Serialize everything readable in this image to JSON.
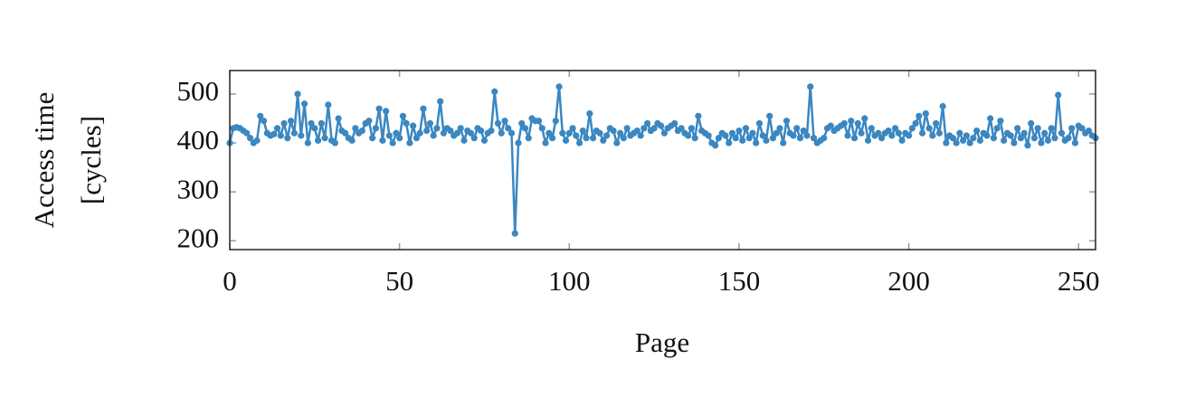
{
  "chart_data": {
    "type": "line",
    "xlabel": "Page",
    "ylabel": [
      "Access time",
      "[cycles]"
    ],
    "color": "#3b87c1",
    "xlim": [
      0,
      255
    ],
    "ylim": [
      182,
      548
    ],
    "xticks": [
      0,
      50,
      100,
      150,
      200,
      250
    ],
    "yticks": [
      200,
      300,
      400,
      500
    ],
    "x": [
      0,
      1,
      2,
      3,
      4,
      5,
      6,
      7,
      8,
      9,
      10,
      11,
      12,
      13,
      14,
      15,
      16,
      17,
      18,
      19,
      20,
      21,
      22,
      23,
      24,
      25,
      26,
      27,
      28,
      29,
      30,
      31,
      32,
      33,
      34,
      35,
      36,
      37,
      38,
      39,
      40,
      41,
      42,
      43,
      44,
      45,
      46,
      47,
      48,
      49,
      50,
      51,
      52,
      53,
      54,
      55,
      56,
      57,
      58,
      59,
      60,
      61,
      62,
      63,
      64,
      65,
      66,
      67,
      68,
      69,
      70,
      71,
      72,
      73,
      74,
      75,
      76,
      77,
      78,
      79,
      80,
      81,
      82,
      83,
      84,
      85,
      86,
      87,
      88,
      89,
      90,
      91,
      92,
      93,
      94,
      95,
      96,
      97,
      98,
      99,
      100,
      101,
      102,
      103,
      104,
      105,
      106,
      107,
      108,
      109,
      110,
      111,
      112,
      113,
      114,
      115,
      116,
      117,
      118,
      119,
      120,
      121,
      122,
      123,
      124,
      125,
      126,
      127,
      128,
      129,
      130,
      131,
      132,
      133,
      134,
      135,
      136,
      137,
      138,
      139,
      140,
      141,
      142,
      143,
      144,
      145,
      146,
      147,
      148,
      149,
      150,
      151,
      152,
      153,
      154,
      155,
      156,
      157,
      158,
      159,
      160,
      161,
      162,
      163,
      164,
      165,
      166,
      167,
      168,
      169,
      170,
      171,
      172,
      173,
      174,
      175,
      176,
      177,
      178,
      179,
      180,
      181,
      182,
      183,
      184,
      185,
      186,
      187,
      188,
      189,
      190,
      191,
      192,
      193,
      194,
      195,
      196,
      197,
      198,
      199,
      200,
      201,
      202,
      203,
      204,
      205,
      206,
      207,
      208,
      209,
      210,
      211,
      212,
      213,
      214,
      215,
      216,
      217,
      218,
      219,
      220,
      221,
      222,
      223,
      224,
      225,
      226,
      227,
      228,
      229,
      230,
      231,
      232,
      233,
      234,
      235,
      236,
      237,
      238,
      239,
      240,
      241,
      242,
      243,
      244,
      245,
      246,
      247,
      248,
      249,
      250,
      251,
      252,
      253,
      254,
      255
    ],
    "values": [
      400,
      430,
      432,
      430,
      425,
      420,
      410,
      400,
      405,
      455,
      445,
      420,
      415,
      418,
      430,
      415,
      440,
      410,
      445,
      420,
      500,
      415,
      480,
      400,
      440,
      430,
      405,
      440,
      410,
      478,
      405,
      400,
      450,
      425,
      420,
      410,
      405,
      430,
      420,
      425,
      440,
      445,
      410,
      430,
      470,
      405,
      465,
      415,
      400,
      420,
      410,
      455,
      440,
      400,
      435,
      410,
      420,
      470,
      425,
      440,
      415,
      430,
      485,
      420,
      430,
      425,
      415,
      420,
      430,
      405,
      425,
      420,
      410,
      430,
      425,
      405,
      420,
      425,
      505,
      440,
      420,
      445,
      430,
      420,
      215,
      400,
      440,
      430,
      410,
      450,
      445,
      445,
      430,
      400,
      420,
      410,
      445,
      515,
      420,
      405,
      420,
      430,
      415,
      400,
      425,
      410,
      460,
      410,
      425,
      420,
      405,
      415,
      430,
      425,
      400,
      420,
      410,
      430,
      415,
      420,
      425,
      415,
      430,
      440,
      425,
      430,
      440,
      435,
      420,
      430,
      435,
      440,
      425,
      430,
      420,
      415,
      430,
      410,
      455,
      425,
      420,
      415,
      400,
      395,
      410,
      420,
      415,
      400,
      420,
      410,
      425,
      405,
      430,
      410,
      420,
      400,
      440,
      415,
      405,
      455,
      410,
      420,
      430,
      400,
      445,
      420,
      415,
      430,
      410,
      425,
      415,
      515,
      410,
      400,
      405,
      410,
      430,
      435,
      425,
      430,
      435,
      440,
      415,
      445,
      410,
      440,
      420,
      450,
      405,
      430,
      415,
      420,
      410,
      420,
      425,
      415,
      430,
      420,
      405,
      420,
      415,
      430,
      440,
      455,
      420,
      460,
      430,
      415,
      440,
      420,
      475,
      400,
      415,
      410,
      400,
      420,
      405,
      415,
      400,
      410,
      425,
      405,
      420,
      415,
      450,
      410,
      430,
      445,
      405,
      420,
      415,
      400,
      430,
      410,
      420,
      395,
      440,
      410,
      430,
      400,
      420,
      405,
      430,
      410,
      498,
      420,
      405,
      410,
      430,
      400,
      435,
      430,
      420,
      425,
      415,
      410
    ]
  }
}
